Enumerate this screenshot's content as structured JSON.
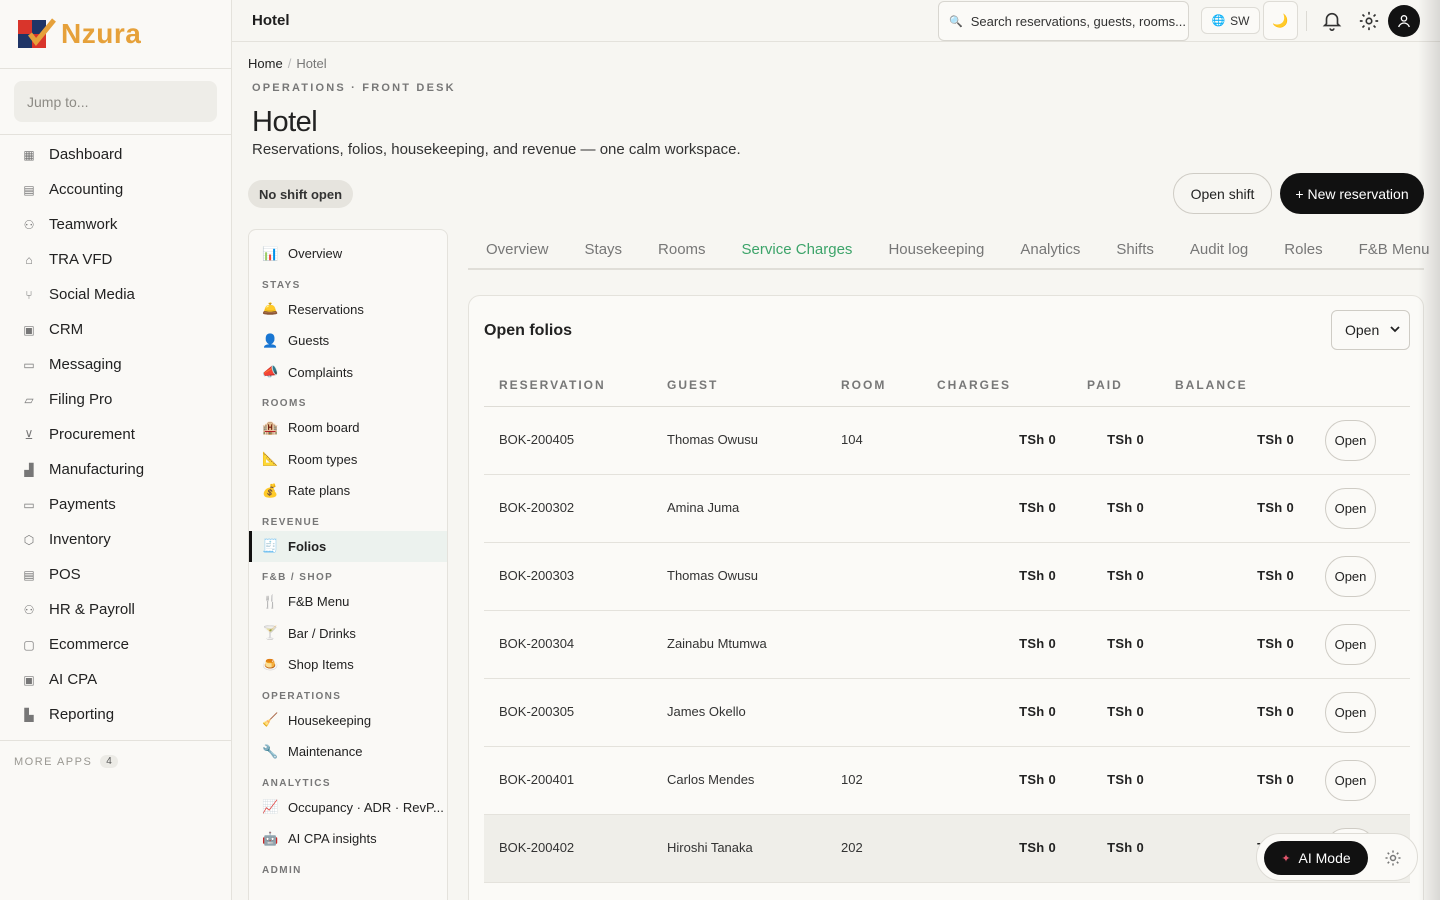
{
  "brand": {
    "name": "Nzura"
  },
  "jump_placeholder": "Jump to...",
  "apps": [
    {
      "label": "Dashboard",
      "icon": "dashboard-icon"
    },
    {
      "label": "Accounting",
      "icon": "accounting-icon"
    },
    {
      "label": "Teamwork",
      "icon": "teamwork-icon"
    },
    {
      "label": "TRA VFD",
      "icon": "bank-icon"
    },
    {
      "label": "Social Media",
      "icon": "social-icon"
    },
    {
      "label": "CRM",
      "icon": "crm-icon"
    },
    {
      "label": "Messaging",
      "icon": "message-icon"
    },
    {
      "label": "Filing Pro",
      "icon": "folder-icon"
    },
    {
      "label": "Procurement",
      "icon": "cart-icon"
    },
    {
      "label": "Manufacturing",
      "icon": "factory-icon"
    },
    {
      "label": "Payments",
      "icon": "card-icon"
    },
    {
      "label": "Inventory",
      "icon": "box-icon"
    },
    {
      "label": "POS",
      "icon": "receipt-icon"
    },
    {
      "label": "HR & Payroll",
      "icon": "people-icon"
    },
    {
      "label": "Ecommerce",
      "icon": "bag-icon"
    },
    {
      "label": "AI CPA",
      "icon": "robot-icon"
    },
    {
      "label": "Reporting",
      "icon": "bar-chart-icon"
    }
  ],
  "more_apps": {
    "label": "MORE APPS",
    "count": "4"
  },
  "topbar": {
    "title": "Hotel",
    "search_placeholder": "Search reservations, guests, rooms...",
    "lang": "SW"
  },
  "breadcrumb": {
    "home": "Home",
    "current": "Hotel"
  },
  "header": {
    "eyebrow": "OPERATIONS · FRONT DESK",
    "title": "Hotel",
    "subtitle": "Reservations, folios, housekeeping, and revenue — one calm workspace.",
    "shift_status": "No shift open",
    "open_shift": "Open shift",
    "new_reservation": "+ New reservation"
  },
  "modnav": {
    "overview": {
      "label": "Overview",
      "emoji": "📊"
    },
    "groups": [
      {
        "title": "STAYS",
        "items": [
          {
            "label": "Reservations",
            "emoji": "🛎️"
          },
          {
            "label": "Guests",
            "emoji": "👤"
          },
          {
            "label": "Complaints",
            "emoji": "📣"
          }
        ]
      },
      {
        "title": "ROOMS",
        "items": [
          {
            "label": "Room board",
            "emoji": "🏨"
          },
          {
            "label": "Room types",
            "emoji": "📐"
          },
          {
            "label": "Rate plans",
            "emoji": "💰"
          }
        ]
      },
      {
        "title": "REVENUE",
        "items": [
          {
            "label": "Folios",
            "emoji": "🧾"
          }
        ]
      },
      {
        "title": "F&B / SHOP",
        "items": [
          {
            "label": "F&B Menu",
            "emoji": "🍴"
          },
          {
            "label": "Bar / Drinks",
            "emoji": "🍸"
          },
          {
            "label": "Shop Items",
            "emoji": "🍮"
          }
        ]
      },
      {
        "title": "OPERATIONS",
        "items": [
          {
            "label": "Housekeeping",
            "emoji": "🧹"
          },
          {
            "label": "Maintenance",
            "emoji": "🔧"
          }
        ]
      },
      {
        "title": "ANALYTICS",
        "items": [
          {
            "label": "Occupancy · ADR · RevP...",
            "emoji": "📈"
          },
          {
            "label": "AI CPA insights",
            "emoji": "🤖"
          }
        ]
      },
      {
        "title": "ADMIN",
        "items": []
      }
    ]
  },
  "tabs": [
    "Overview",
    "Stays",
    "Rooms",
    "Service Charges",
    "Housekeeping",
    "Analytics",
    "Shifts",
    "Audit log",
    "Roles",
    "F&B Menu"
  ],
  "active_tab": "Service Charges",
  "folios": {
    "title": "Open folios",
    "filter": "Open",
    "columns": [
      "RESERVATION",
      "GUEST",
      "ROOM",
      "CHARGES",
      "PAID",
      "BALANCE"
    ],
    "rows": [
      {
        "reservation": "BOK-200405",
        "guest": "Thomas Owusu",
        "room": "104",
        "charges": "TSh 0",
        "paid": "TSh 0",
        "balance": "TSh 0",
        "action": "Open"
      },
      {
        "reservation": "BOK-200302",
        "guest": "Amina Juma",
        "room": "",
        "charges": "TSh 0",
        "paid": "TSh 0",
        "balance": "TSh 0",
        "action": "Open"
      },
      {
        "reservation": "BOK-200303",
        "guest": "Thomas Owusu",
        "room": "",
        "charges": "TSh 0",
        "paid": "TSh 0",
        "balance": "TSh 0",
        "action": "Open"
      },
      {
        "reservation": "BOK-200304",
        "guest": "Zainabu Mtumwa",
        "room": "",
        "charges": "TSh 0",
        "paid": "TSh 0",
        "balance": "TSh 0",
        "action": "Open"
      },
      {
        "reservation": "BOK-200305",
        "guest": "James Okello",
        "room": "",
        "charges": "TSh 0",
        "paid": "TSh 0",
        "balance": "TSh 0",
        "action": "Open"
      },
      {
        "reservation": "BOK-200401",
        "guest": "Carlos Mendes",
        "room": "102",
        "charges": "TSh 0",
        "paid": "TSh 0",
        "balance": "TSh 0",
        "action": "Open"
      },
      {
        "reservation": "BOK-200402",
        "guest": "Hiroshi Tanaka",
        "room": "202",
        "charges": "TSh 0",
        "paid": "TSh 0",
        "balance": "TSh 0",
        "action": "Open"
      }
    ]
  },
  "ai_mode": {
    "label": "AI Mode"
  },
  "colors": {
    "accent_green": "#3da46a",
    "primary_dark": "#111111",
    "logo_orange": "#e6a13a",
    "logo_red": "#d9352b",
    "logo_navy": "#1f3566"
  }
}
